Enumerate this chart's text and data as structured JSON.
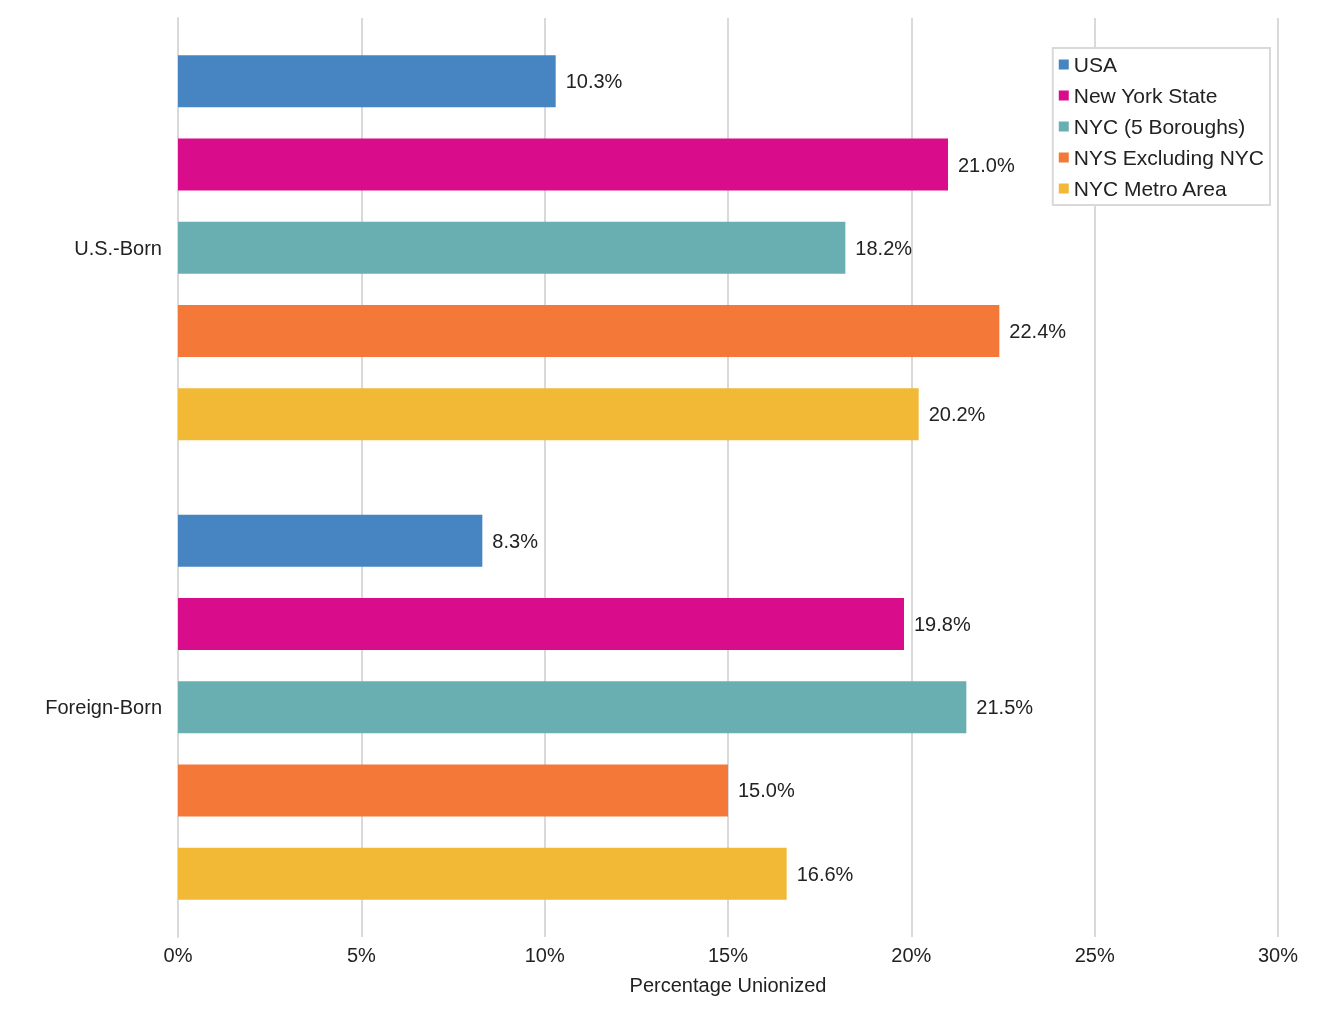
{
  "chart_data": {
    "type": "bar",
    "orientation": "horizontal",
    "xlabel": "Percentage Unionized",
    "categories": [
      "U.S.-Born",
      "Foreign-Born"
    ],
    "series": [
      {
        "name": "USA",
        "color": "#4684c2",
        "values": [
          10.3,
          8.3
        ],
        "value_labels": [
          "10.3%",
          "8.3%"
        ]
      },
      {
        "name": "New York State",
        "color": "#d90c8c",
        "values": [
          21.0,
          19.8
        ],
        "value_labels": [
          "21.0%",
          "19.8%"
        ]
      },
      {
        "name": "NYC (5 Boroughs)",
        "color": "#69afb1",
        "values": [
          18.2,
          21.5
        ],
        "value_labels": [
          "18.2%",
          "21.5%"
        ]
      },
      {
        "name": "NYS Excluding NYC",
        "color": "#f47938",
        "values": [
          22.4,
          15.0
        ],
        "value_labels": [
          "22.4%",
          "15.0%"
        ]
      },
      {
        "name": "NYC Metro Area",
        "color": "#f1b936",
        "values": [
          20.2,
          16.6
        ],
        "value_labels": [
          "20.2%",
          "16.6%"
        ]
      }
    ],
    "xlim": [
      0,
      30
    ],
    "xticks": [
      {
        "value": 0,
        "label": "0%"
      },
      {
        "value": 5,
        "label": "5%"
      },
      {
        "value": 10,
        "label": "10%"
      },
      {
        "value": 15,
        "label": "15%"
      },
      {
        "value": 20,
        "label": "20%"
      },
      {
        "value": 25,
        "label": "25%"
      },
      {
        "value": 30,
        "label": "30%"
      }
    ],
    "grid": "x",
    "legend": "top right"
  }
}
